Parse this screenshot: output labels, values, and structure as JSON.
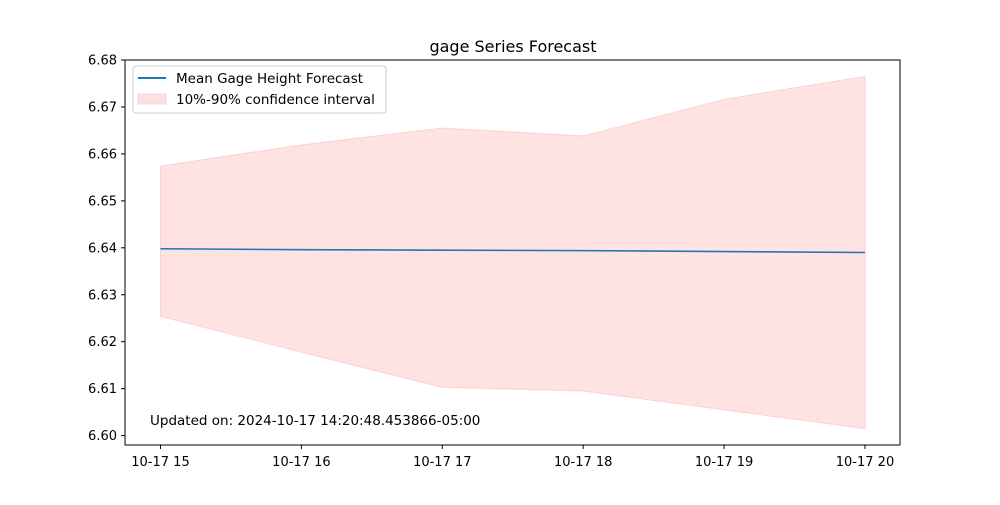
{
  "chart_data": {
    "type": "line",
    "title": "gage Series Forecast",
    "xlabel": "",
    "ylabel": "",
    "x": [
      "10-17 15",
      "10-17 16",
      "10-17 17",
      "10-17 18",
      "10-17 19",
      "10-17 20"
    ],
    "ylim": [
      6.598,
      6.68
    ],
    "yticks": [
      "6.60",
      "6.61",
      "6.62",
      "6.63",
      "6.64",
      "6.65",
      "6.66",
      "6.67",
      "6.68"
    ],
    "series": [
      {
        "name": "Mean Gage Height Forecast",
        "type": "line",
        "color": "#1f77b4",
        "values": [
          6.6398,
          6.6396,
          6.6395,
          6.6394,
          6.6392,
          6.639
        ]
      },
      {
        "name": "10%-90% confidence interval",
        "type": "band",
        "color": "#ffcccc",
        "lower": [
          6.6254,
          6.6178,
          6.6103,
          6.6095,
          6.6055,
          6.6015
        ],
        "upper": [
          6.6574,
          6.6619,
          6.6655,
          6.6638,
          6.6716,
          6.6765
        ]
      }
    ],
    "legend_placement": "upper-left",
    "grid": false,
    "annotation": "Updated on: 2024-10-17 14:20:48.453866-05:00"
  }
}
